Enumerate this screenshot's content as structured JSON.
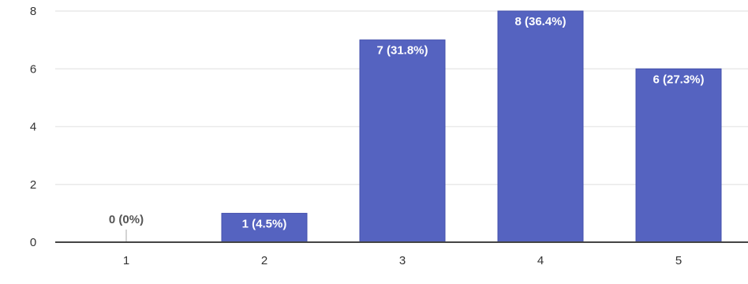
{
  "chart_data": {
    "type": "bar",
    "categories": [
      "1",
      "2",
      "3",
      "4",
      "5"
    ],
    "values": [
      0,
      1,
      7,
      8,
      6
    ],
    "data_labels": [
      "0 (0%)",
      "1 (4.5%)",
      "7 (31.8%)",
      "8 (36.4%)",
      "6 (27.3%)"
    ],
    "y_ticks": [
      "0",
      "2",
      "4",
      "6",
      "8"
    ],
    "ylim": [
      0,
      8
    ],
    "grid": true,
    "colors": {
      "bar": "#5563c0",
      "bar_stroke": "#4450ad",
      "label_inside": "#ffffff",
      "label_outside": "#555555",
      "grid": "#e9e9e9",
      "axis": "#444444"
    }
  }
}
